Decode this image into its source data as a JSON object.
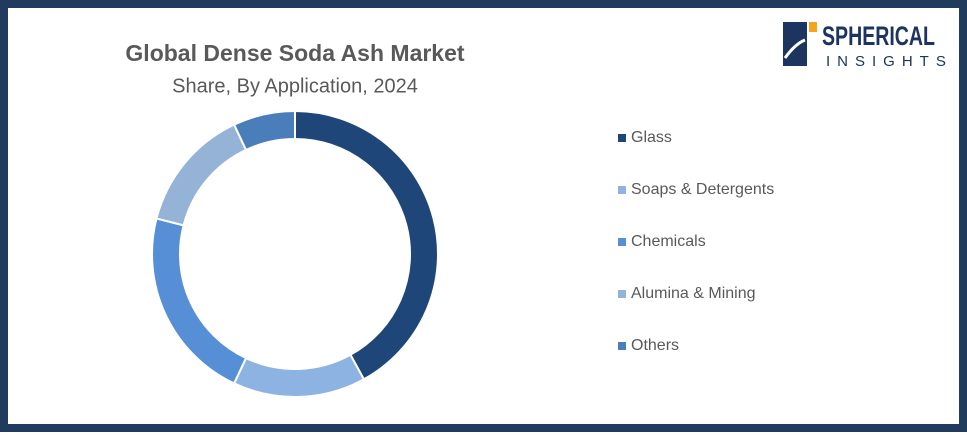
{
  "logo": {
    "name": "SPHERICAL",
    "tagline": "INSIGHTS"
  },
  "chart_data": {
    "type": "pie",
    "title": "Global Dense Soda Ash Market",
    "subtitle": "Share, By Application, 2024",
    "categories": [
      "Glass",
      "Soaps & Detergents",
      "Chemicals",
      "Alumina & Mining",
      "Others"
    ],
    "values": [
      42,
      15,
      22,
      14,
      7
    ],
    "colors": [
      "#1f4679",
      "#8db3e2",
      "#568fd6",
      "#95b3d7",
      "#4a7ebb"
    ],
    "donut": true,
    "legend": "right"
  }
}
